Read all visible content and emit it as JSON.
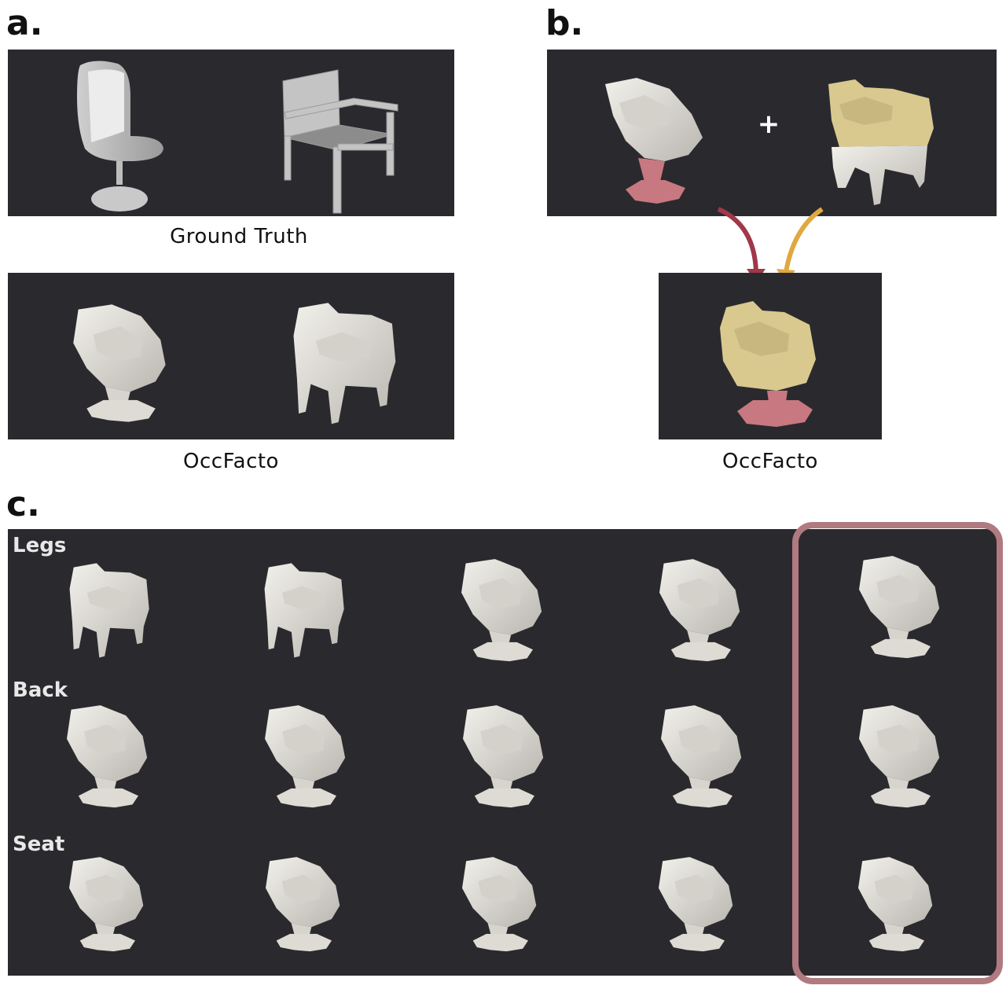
{
  "panel_a": {
    "label": "a.",
    "caption_top": "Ground Truth",
    "caption_bottom": "OccFacto"
  },
  "panel_b": {
    "label": "b.",
    "plus_symbol": "+",
    "caption": "OccFacto",
    "colors": {
      "legs_part": "#c87880",
      "back_part": "#d9c98f",
      "arrow_red": "#a03848",
      "arrow_yellow": "#e0a840"
    }
  },
  "panel_c": {
    "label": "c.",
    "rows": [
      {
        "label": "Legs"
      },
      {
        "label": "Back"
      },
      {
        "label": "Seat"
      }
    ],
    "highlight_color": "#b07a80"
  },
  "colors": {
    "panel_bg": "#2a2a2e",
    "mesh": "#e6e4de"
  }
}
